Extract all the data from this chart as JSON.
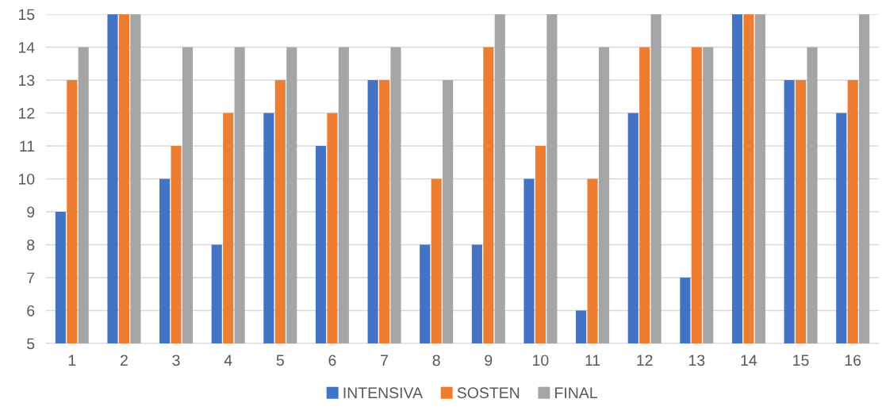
{
  "chart_data": {
    "type": "bar",
    "categories": [
      "1",
      "2",
      "3",
      "4",
      "5",
      "6",
      "7",
      "8",
      "9",
      "10",
      "11",
      "12",
      "13",
      "14",
      "15",
      "16"
    ],
    "series": [
      {
        "name": "INTENSIVA",
        "color": "#4472c4",
        "values": [
          9,
          15,
          10,
          8,
          12,
          11,
          13,
          8,
          8,
          10,
          6,
          12,
          7,
          15,
          13,
          12
        ]
      },
      {
        "name": "SOSTEN",
        "color": "#ed7d31",
        "values": [
          13,
          15,
          11,
          12,
          13,
          12,
          13,
          10,
          14,
          11,
          10,
          14,
          14,
          15,
          13,
          13
        ]
      },
      {
        "name": "FINAL",
        "color": "#a5a5a5",
        "values": [
          14,
          15,
          14,
          14,
          14,
          14,
          14,
          13,
          15,
          15,
          14,
          15,
          14,
          15,
          14,
          15
        ]
      }
    ],
    "ylim": [
      5,
      15
    ],
    "yticks": [
      5,
      6,
      7,
      8,
      9,
      10,
      11,
      12,
      13,
      14,
      15
    ],
    "grid": "y",
    "legend": "bottom"
  }
}
